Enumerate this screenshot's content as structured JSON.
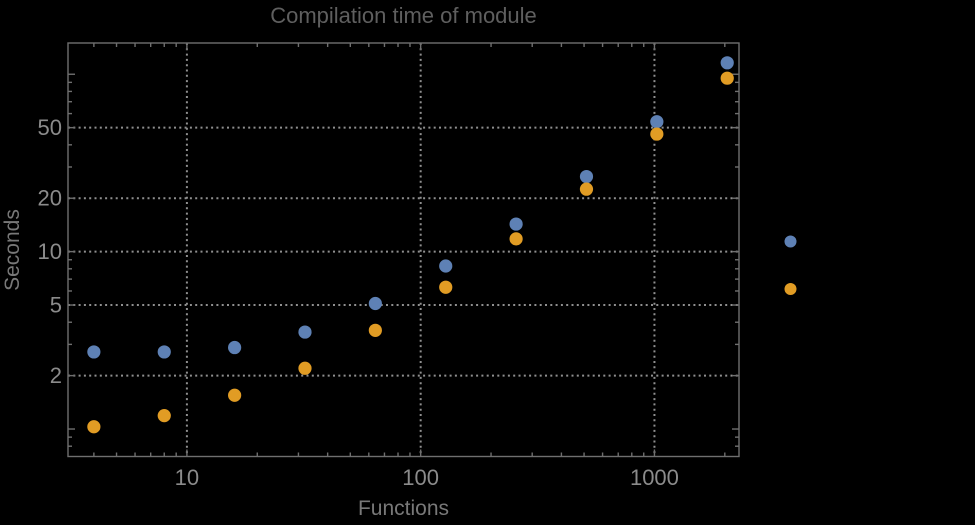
{
  "title": "Compilation time of module",
  "colors": {
    "background": "#000000",
    "frame": "#6f6f6f",
    "grid": "#8f8f8f",
    "tick_label": "#8b8b8b",
    "title_text": "#5f5f5f",
    "axis_label_text": "#787878",
    "series_blue": "#5e81b5",
    "series_orange": "#e19c24"
  },
  "chart_data": {
    "type": "scatter",
    "title": "Compilation time of module",
    "xlabel": "Functions",
    "ylabel": "Seconds",
    "x_scale": "log",
    "y_scale": "log",
    "x_range": [
      3.1,
      2300
    ],
    "y_range": [
      0.7,
      150
    ],
    "x_tick_labels": [
      10,
      100,
      1000
    ],
    "y_tick_labels": [
      2,
      5,
      10,
      20,
      50
    ],
    "y_major_unlabeled": [
      1,
      100
    ],
    "grid": "dotted gridlines at labeled major ticks, framed axes with log minor ticks on all four edges",
    "legend_position": "right-outside, marker dots only, no visible label text",
    "x": [
      4,
      8,
      16,
      32,
      64,
      128,
      256,
      512,
      1024,
      2048
    ],
    "series": [
      {
        "name": "blue",
        "color": "#5e81b5",
        "marker": "disk",
        "values": [
          2.72,
          2.72,
          2.88,
          3.52,
          5.1,
          8.3,
          14.3,
          26.5,
          54,
          116
        ]
      },
      {
        "name": "orange",
        "color": "#e19c24",
        "marker": "disk",
        "values": [
          1.03,
          1.19,
          1.55,
          2.2,
          3.6,
          6.3,
          11.8,
          22.5,
          46,
          95
        ]
      }
    ]
  }
}
